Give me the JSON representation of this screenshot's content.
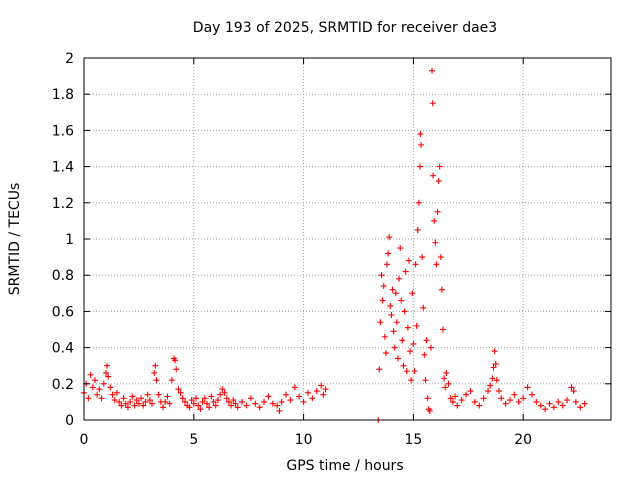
{
  "chart_data": {
    "type": "scatter",
    "title": "Day 193 of 2025, SRMTID for receiver dae3",
    "xlabel": "GPS time / hours",
    "ylabel": "SRMTID / TECUs",
    "xlim": [
      0,
      24
    ],
    "ylim": [
      0,
      2
    ],
    "grid": true,
    "marker": "+",
    "series_color": "#ff0000",
    "x_ticks": [
      0,
      5,
      10,
      15,
      20
    ],
    "x_tick_labels": [
      "0",
      "5",
      "10",
      "15",
      "20"
    ],
    "y_ticks": [
      0,
      0.2,
      0.4,
      0.6,
      0.8,
      1,
      1.2,
      1.4,
      1.6,
      1.8,
      2
    ],
    "y_tick_labels": [
      "0",
      "0.2",
      "0.4",
      "0.6",
      "0.8",
      "1",
      "1.2",
      "1.4",
      "1.6",
      "1.8",
      "2"
    ],
    "series": [
      {
        "name": "dae3",
        "points": [
          [
            0.0,
            0.15
          ],
          [
            0.1,
            0.2
          ],
          [
            0.2,
            0.12
          ],
          [
            0.3,
            0.25
          ],
          [
            0.4,
            0.18
          ],
          [
            0.5,
            0.22
          ],
          [
            0.6,
            0.14
          ],
          [
            0.7,
            0.17
          ],
          [
            0.8,
            0.12
          ],
          [
            0.9,
            0.2
          ],
          [
            1.0,
            0.26
          ],
          [
            1.05,
            0.3
          ],
          [
            1.1,
            0.24
          ],
          [
            1.2,
            0.18
          ],
          [
            1.3,
            0.14
          ],
          [
            1.4,
            0.11
          ],
          [
            1.5,
            0.15
          ],
          [
            1.6,
            0.1
          ],
          [
            1.7,
            0.08
          ],
          [
            1.8,
            0.12
          ],
          [
            1.9,
            0.09
          ],
          [
            2.0,
            0.07
          ],
          [
            2.1,
            0.1
          ],
          [
            2.2,
            0.13
          ],
          [
            2.3,
            0.08
          ],
          [
            2.4,
            0.11
          ],
          [
            2.5,
            0.09
          ],
          [
            2.6,
            0.12
          ],
          [
            2.7,
            0.08
          ],
          [
            2.8,
            0.1
          ],
          [
            2.9,
            0.14
          ],
          [
            3.0,
            0.11
          ],
          [
            3.1,
            0.09
          ],
          [
            3.2,
            0.26
          ],
          [
            3.25,
            0.3
          ],
          [
            3.3,
            0.22
          ],
          [
            3.4,
            0.14
          ],
          [
            3.5,
            0.1
          ],
          [
            3.6,
            0.07
          ],
          [
            3.7,
            0.1
          ],
          [
            3.8,
            0.13
          ],
          [
            3.9,
            0.09
          ],
          [
            4.0,
            0.22
          ],
          [
            4.1,
            0.34
          ],
          [
            4.15,
            0.33
          ],
          [
            4.2,
            0.28
          ],
          [
            4.3,
            0.17
          ],
          [
            4.4,
            0.15
          ],
          [
            4.5,
            0.12
          ],
          [
            4.6,
            0.1
          ],
          [
            4.7,
            0.08
          ],
          [
            4.8,
            0.07
          ],
          [
            4.9,
            0.11
          ],
          [
            5.0,
            0.09
          ],
          [
            5.1,
            0.12
          ],
          [
            5.2,
            0.08
          ],
          [
            5.3,
            0.06
          ],
          [
            5.4,
            0.1
          ],
          [
            5.5,
            0.12
          ],
          [
            5.6,
            0.09
          ],
          [
            5.7,
            0.07
          ],
          [
            5.8,
            0.13
          ],
          [
            5.9,
            0.1
          ],
          [
            6.0,
            0.08
          ],
          [
            6.1,
            0.11
          ],
          [
            6.2,
            0.14
          ],
          [
            6.3,
            0.17
          ],
          [
            6.4,
            0.15
          ],
          [
            6.5,
            0.12
          ],
          [
            6.6,
            0.1
          ],
          [
            6.7,
            0.08
          ],
          [
            6.8,
            0.11
          ],
          [
            6.9,
            0.09
          ],
          [
            7.0,
            0.07
          ],
          [
            7.2,
            0.1
          ],
          [
            7.4,
            0.08
          ],
          [
            7.6,
            0.12
          ],
          [
            7.8,
            0.09
          ],
          [
            8.0,
            0.07
          ],
          [
            8.2,
            0.1
          ],
          [
            8.4,
            0.13
          ],
          [
            8.6,
            0.09
          ],
          [
            8.8,
            0.08
          ],
          [
            8.9,
            0.05
          ],
          [
            9.0,
            0.1
          ],
          [
            9.2,
            0.14
          ],
          [
            9.4,
            0.11
          ],
          [
            9.6,
            0.18
          ],
          [
            9.8,
            0.13
          ],
          [
            10.0,
            0.1
          ],
          [
            10.2,
            0.15
          ],
          [
            10.4,
            0.12
          ],
          [
            10.6,
            0.16
          ],
          [
            10.8,
            0.19
          ],
          [
            10.9,
            0.14
          ],
          [
            11.0,
            0.17
          ],
          [
            13.4,
            0.0
          ],
          [
            13.45,
            0.28
          ],
          [
            13.5,
            0.54
          ],
          [
            13.55,
            0.8
          ],
          [
            13.6,
            0.66
          ],
          [
            13.65,
            0.74
          ],
          [
            13.7,
            0.46
          ],
          [
            13.75,
            0.37
          ],
          [
            13.8,
            0.86
          ],
          [
            13.85,
            0.92
          ],
          [
            13.9,
            1.01
          ],
          [
            13.95,
            0.63
          ],
          [
            14.0,
            0.58
          ],
          [
            14.05,
            0.72
          ],
          [
            14.1,
            0.49
          ],
          [
            14.15,
            0.4
          ],
          [
            14.2,
            0.7
          ],
          [
            14.25,
            0.54
          ],
          [
            14.3,
            0.34
          ],
          [
            14.35,
            0.78
          ],
          [
            14.4,
            0.95
          ],
          [
            14.45,
            0.66
          ],
          [
            14.5,
            0.44
          ],
          [
            14.55,
            0.3
          ],
          [
            14.6,
            0.6
          ],
          [
            14.65,
            0.82
          ],
          [
            14.7,
            0.27
          ],
          [
            14.75,
            0.51
          ],
          [
            14.8,
            0.88
          ],
          [
            14.85,
            0.38
          ],
          [
            14.9,
            0.22
          ],
          [
            14.95,
            0.7
          ],
          [
            15.0,
            0.42
          ],
          [
            15.05,
            0.27
          ],
          [
            15.1,
            0.86
          ],
          [
            15.15,
            0.52
          ],
          [
            15.2,
            1.05
          ],
          [
            15.25,
            1.2
          ],
          [
            15.3,
            1.4
          ],
          [
            15.32,
            1.58
          ],
          [
            15.35,
            1.52
          ],
          [
            15.4,
            0.9
          ],
          [
            15.45,
            0.62
          ],
          [
            15.5,
            0.36
          ],
          [
            15.55,
            0.22
          ],
          [
            15.6,
            0.44
          ],
          [
            15.65,
            0.12
          ],
          [
            15.7,
            0.06
          ],
          [
            15.75,
            0.05
          ],
          [
            15.8,
            0.4
          ],
          [
            15.85,
            1.93
          ],
          [
            15.88,
            1.75
          ],
          [
            15.9,
            1.35
          ],
          [
            15.95,
            1.1
          ],
          [
            16.0,
            0.98
          ],
          [
            16.05,
            0.86
          ],
          [
            16.1,
            1.15
          ],
          [
            16.15,
            1.32
          ],
          [
            16.2,
            1.4
          ],
          [
            16.25,
            0.9
          ],
          [
            16.3,
            0.72
          ],
          [
            16.35,
            0.5
          ],
          [
            16.4,
            0.23
          ],
          [
            16.45,
            0.18
          ],
          [
            16.5,
            0.26
          ],
          [
            16.6,
            0.2
          ],
          [
            16.7,
            0.12
          ],
          [
            16.8,
            0.1
          ],
          [
            16.9,
            0.13
          ],
          [
            17.0,
            0.08
          ],
          [
            17.2,
            0.11
          ],
          [
            17.4,
            0.14
          ],
          [
            17.6,
            0.16
          ],
          [
            17.8,
            0.1
          ],
          [
            18.0,
            0.08
          ],
          [
            18.2,
            0.12
          ],
          [
            18.4,
            0.16
          ],
          [
            18.5,
            0.19
          ],
          [
            18.6,
            0.23
          ],
          [
            18.65,
            0.29
          ],
          [
            18.7,
            0.38
          ],
          [
            18.75,
            0.31
          ],
          [
            18.8,
            0.22
          ],
          [
            18.9,
            0.16
          ],
          [
            19.0,
            0.12
          ],
          [
            19.2,
            0.09
          ],
          [
            19.4,
            0.11
          ],
          [
            19.6,
            0.14
          ],
          [
            19.8,
            0.1
          ],
          [
            20.0,
            0.12
          ],
          [
            20.2,
            0.18
          ],
          [
            20.4,
            0.14
          ],
          [
            20.6,
            0.1
          ],
          [
            20.8,
            0.08
          ],
          [
            21.0,
            0.06
          ],
          [
            21.2,
            0.09
          ],
          [
            21.4,
            0.07
          ],
          [
            21.6,
            0.1
          ],
          [
            21.8,
            0.08
          ],
          [
            22.0,
            0.11
          ],
          [
            22.2,
            0.18
          ],
          [
            22.3,
            0.16
          ],
          [
            22.4,
            0.1
          ],
          [
            22.6,
            0.07
          ],
          [
            22.8,
            0.09
          ]
        ]
      }
    ]
  }
}
